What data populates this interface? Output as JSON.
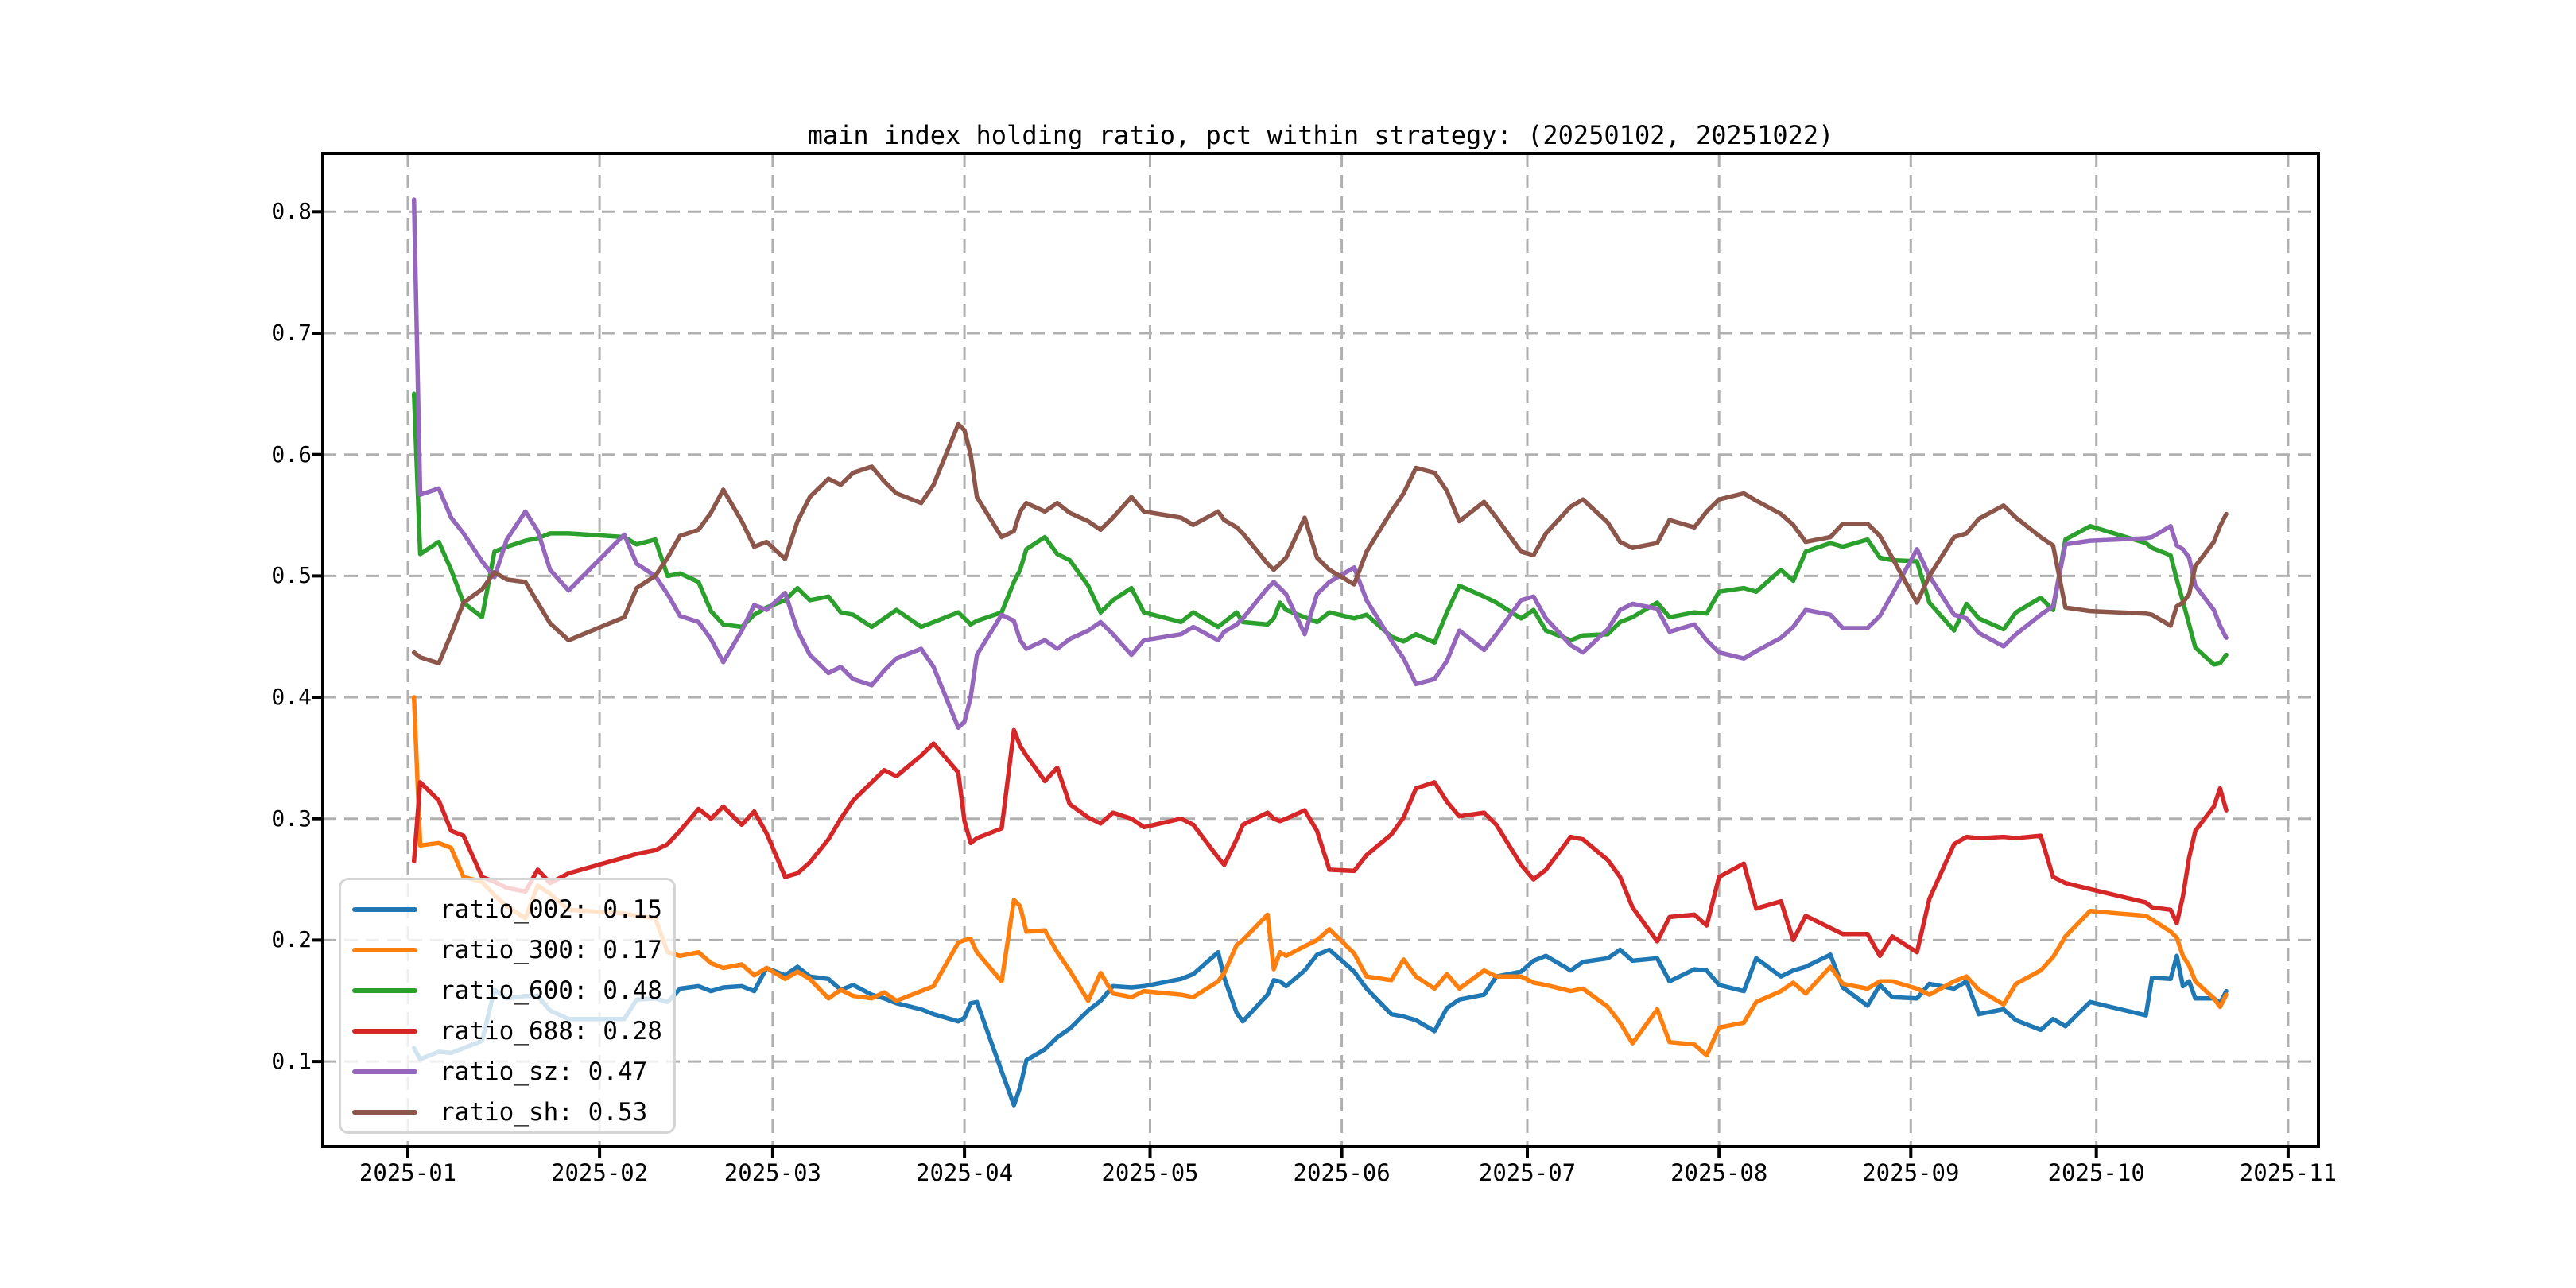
{
  "figure": {
    "background": "#ffffff"
  },
  "chart_data": {
    "type": "line",
    "title": "main index holding ratio, pct within strategy: (20250102, 20251022)",
    "grid": true,
    "grid_style": "dashed",
    "grid_color": "#b0b0b0",
    "spine_color": "#000000",
    "legend_position": "lower-left",
    "x_axis": {
      "tick_labels": [
        "2025-01",
        "2025-02",
        "2025-03",
        "2025-04",
        "2025-05",
        "2025-06",
        "2025-07",
        "2025-08",
        "2025-09",
        "2025-10",
        "2025-11"
      ],
      "tick_days": [
        0,
        31,
        59,
        90,
        120,
        151,
        181,
        212,
        243,
        273,
        304
      ],
      "range_days": [
        -13.75,
        308.9
      ]
    },
    "y_axis": {
      "tick_labels": [
        "0.1",
        "0.2",
        "0.3",
        "0.4",
        "0.5",
        "0.6",
        "0.7",
        "0.8"
      ],
      "tick_values": [
        0.1,
        0.2,
        0.3,
        0.4,
        0.5,
        0.6,
        0.7,
        0.8
      ],
      "range": [
        0.03,
        0.848
      ]
    },
    "dates": [
      "01-02",
      "01-03",
      "01-06",
      "01-08",
      "01-10",
      "01-13",
      "01-15",
      "01-17",
      "01-20",
      "01-22",
      "01-24",
      "01-27",
      "02-05",
      "02-07",
      "02-10",
      "02-12",
      "02-14",
      "02-17",
      "02-19",
      "02-21",
      "02-24",
      "02-26",
      "02-28",
      "03-03",
      "03-05",
      "03-07",
      "03-10",
      "03-12",
      "03-14",
      "03-17",
      "03-19",
      "03-21",
      "03-25",
      "03-27",
      "03-31",
      "04-01",
      "04-02",
      "04-03",
      "04-07",
      "04-09",
      "04-10",
      "04-11",
      "04-14",
      "04-16",
      "04-18",
      "04-21",
      "04-23",
      "04-25",
      "04-28",
      "04-30",
      "05-06",
      "05-08",
      "05-12",
      "05-13",
      "05-15",
      "05-16",
      "05-20",
      "05-21",
      "05-22",
      "05-23",
      "05-26",
      "05-28",
      "05-30",
      "06-03",
      "06-05",
      "06-09",
      "06-11",
      "06-13",
      "06-16",
      "06-18",
      "06-20",
      "06-24",
      "06-26",
      "06-30",
      "07-02",
      "07-04",
      "07-08",
      "07-10",
      "07-14",
      "07-16",
      "07-18",
      "07-22",
      "07-24",
      "07-28",
      "07-30",
      "08-01",
      "08-05",
      "08-07",
      "08-11",
      "08-13",
      "08-15",
      "08-19",
      "08-21",
      "08-25",
      "08-27",
      "08-29",
      "09-02",
      "09-04",
      "09-08",
      "09-10",
      "09-12",
      "09-16",
      "09-18",
      "09-22",
      "09-24",
      "09-26",
      "09-30",
      "10-09",
      "10-10",
      "10-13",
      "10-14",
      "10-15",
      "10-16",
      "10-17",
      "10-20",
      "10-21",
      "10-22"
    ],
    "x_days": [
      1,
      2,
      5,
      7,
      9,
      12,
      14,
      16,
      19,
      21,
      23,
      26,
      35,
      37,
      40,
      42,
      44,
      47,
      49,
      51,
      54,
      56,
      58,
      61,
      63,
      65,
      68,
      70,
      72,
      75,
      77,
      79,
      83,
      85,
      89,
      90,
      91,
      92,
      96,
      98,
      99,
      100,
      103,
      105,
      107,
      110,
      112,
      114,
      117,
      119,
      125,
      127,
      131,
      132,
      134,
      135,
      139,
      140,
      141,
      142,
      145,
      147,
      149,
      153,
      155,
      159,
      161,
      163,
      166,
      168,
      170,
      174,
      176,
      180,
      182,
      184,
      188,
      190,
      194,
      196,
      198,
      202,
      204,
      208,
      210,
      212,
      216,
      218,
      222,
      224,
      226,
      230,
      232,
      236,
      238,
      240,
      244,
      246,
      250,
      252,
      254,
      258,
      260,
      264,
      266,
      268,
      272,
      281,
      282,
      285,
      286,
      287,
      288,
      289,
      292,
      293,
      294
    ],
    "series": [
      {
        "name": "ratio_002",
        "legend_label": "ratio_002: 0.15",
        "legend_value": "0.15",
        "color": "#1f77b4",
        "values": [
          0.111,
          0.102,
          0.108,
          0.107,
          0.111,
          0.117,
          0.159,
          0.152,
          0.154,
          0.154,
          0.142,
          0.135,
          0.135,
          0.151,
          0.152,
          0.149,
          0.16,
          0.162,
          0.158,
          0.161,
          0.162,
          0.158,
          0.177,
          0.171,
          0.178,
          0.17,
          0.168,
          0.159,
          0.163,
          0.155,
          0.152,
          0.148,
          0.143,
          0.139,
          0.133,
          0.136,
          0.148,
          0.149,
          0.092,
          0.064,
          0.079,
          0.101,
          0.11,
          0.12,
          0.127,
          0.142,
          0.15,
          0.162,
          0.161,
          0.162,
          0.168,
          0.172,
          0.19,
          0.169,
          0.14,
          0.133,
          0.155,
          0.167,
          0.166,
          0.162,
          0.175,
          0.188,
          0.192,
          0.174,
          0.16,
          0.139,
          0.137,
          0.134,
          0.125,
          0.144,
          0.151,
          0.155,
          0.17,
          0.174,
          0.183,
          0.187,
          0.175,
          0.182,
          0.185,
          0.192,
          0.183,
          0.185,
          0.166,
          0.176,
          0.175,
          0.163,
          0.158,
          0.185,
          0.17,
          0.175,
          0.178,
          0.188,
          0.161,
          0.146,
          0.163,
          0.153,
          0.152,
          0.164,
          0.16,
          0.166,
          0.139,
          0.143,
          0.134,
          0.126,
          0.135,
          0.129,
          0.149,
          0.138,
          0.169,
          0.168,
          0.187,
          0.162,
          0.166,
          0.152,
          0.152,
          0.148,
          0.158
        ]
      },
      {
        "name": "ratio_300",
        "legend_label": "ratio_300: 0.17",
        "legend_value": "0.17",
        "color": "#ff7f0e",
        "values": [
          0.4,
          0.278,
          0.28,
          0.276,
          0.252,
          0.248,
          0.237,
          0.228,
          0.218,
          0.245,
          0.238,
          0.225,
          0.222,
          0.22,
          0.218,
          0.19,
          0.187,
          0.19,
          0.181,
          0.177,
          0.18,
          0.171,
          0.177,
          0.168,
          0.174,
          0.168,
          0.152,
          0.159,
          0.154,
          0.152,
          0.157,
          0.15,
          0.158,
          0.162,
          0.198,
          0.2,
          0.201,
          0.19,
          0.166,
          0.233,
          0.228,
          0.207,
          0.208,
          0.19,
          0.175,
          0.15,
          0.173,
          0.156,
          0.153,
          0.158,
          0.155,
          0.153,
          0.166,
          0.173,
          0.196,
          0.2,
          0.221,
          0.176,
          0.19,
          0.187,
          0.195,
          0.2,
          0.209,
          0.189,
          0.17,
          0.167,
          0.184,
          0.17,
          0.16,
          0.172,
          0.16,
          0.175,
          0.17,
          0.17,
          0.165,
          0.163,
          0.158,
          0.16,
          0.145,
          0.132,
          0.115,
          0.143,
          0.116,
          0.114,
          0.105,
          0.128,
          0.132,
          0.149,
          0.158,
          0.165,
          0.156,
          0.178,
          0.164,
          0.16,
          0.166,
          0.166,
          0.16,
          0.155,
          0.166,
          0.17,
          0.159,
          0.147,
          0.164,
          0.175,
          0.186,
          0.203,
          0.224,
          0.22,
          0.217,
          0.207,
          0.202,
          0.187,
          0.179,
          0.166,
          0.152,
          0.145,
          0.155
        ]
      },
      {
        "name": "ratio_600",
        "legend_label": "ratio_600: 0.48",
        "legend_value": "0.48",
        "color": "#2ca02c",
        "values": [
          0.65,
          0.518,
          0.528,
          0.505,
          0.478,
          0.466,
          0.52,
          0.524,
          0.529,
          0.531,
          0.535,
          0.535,
          0.532,
          0.526,
          0.53,
          0.5,
          0.502,
          0.495,
          0.471,
          0.46,
          0.458,
          0.468,
          0.474,
          0.48,
          0.49,
          0.48,
          0.483,
          0.47,
          0.468,
          0.458,
          0.465,
          0.472,
          0.458,
          0.462,
          0.47,
          0.465,
          0.46,
          0.463,
          0.47,
          0.495,
          0.505,
          0.522,
          0.532,
          0.518,
          0.513,
          0.492,
          0.47,
          0.48,
          0.49,
          0.47,
          0.462,
          0.47,
          0.458,
          0.462,
          0.47,
          0.462,
          0.46,
          0.465,
          0.478,
          0.472,
          0.466,
          0.462,
          0.47,
          0.465,
          0.468,
          0.45,
          0.446,
          0.452,
          0.445,
          0.47,
          0.492,
          0.483,
          0.478,
          0.465,
          0.472,
          0.455,
          0.447,
          0.451,
          0.452,
          0.462,
          0.466,
          0.478,
          0.466,
          0.47,
          0.469,
          0.487,
          0.49,
          0.487,
          0.505,
          0.496,
          0.52,
          0.527,
          0.524,
          0.53,
          0.515,
          0.513,
          0.512,
          0.478,
          0.455,
          0.477,
          0.465,
          0.456,
          0.47,
          0.482,
          0.472,
          0.53,
          0.541,
          0.527,
          0.523,
          0.517,
          0.497,
          0.479,
          0.46,
          0.441,
          0.427,
          0.428,
          0.435
        ]
      },
      {
        "name": "ratio_688",
        "legend_label": "ratio_688: 0.28",
        "legend_value": "0.28",
        "color": "#d62728",
        "values": [
          0.265,
          0.33,
          0.315,
          0.29,
          0.286,
          0.252,
          0.248,
          0.243,
          0.24,
          0.258,
          0.247,
          0.255,
          0.268,
          0.271,
          0.274,
          0.279,
          0.29,
          0.308,
          0.3,
          0.31,
          0.295,
          0.306,
          0.288,
          0.252,
          0.255,
          0.264,
          0.283,
          0.3,
          0.315,
          0.33,
          0.34,
          0.335,
          0.352,
          0.362,
          0.338,
          0.298,
          0.28,
          0.284,
          0.292,
          0.373,
          0.36,
          0.352,
          0.331,
          0.342,
          0.312,
          0.301,
          0.296,
          0.305,
          0.3,
          0.293,
          0.3,
          0.295,
          0.268,
          0.262,
          0.283,
          0.295,
          0.305,
          0.3,
          0.298,
          0.3,
          0.307,
          0.29,
          0.258,
          0.257,
          0.27,
          0.287,
          0.301,
          0.325,
          0.33,
          0.314,
          0.302,
          0.305,
          0.295,
          0.262,
          0.25,
          0.258,
          0.285,
          0.283,
          0.266,
          0.252,
          0.227,
          0.199,
          0.219,
          0.221,
          0.212,
          0.252,
          0.263,
          0.226,
          0.232,
          0.2,
          0.22,
          0.21,
          0.205,
          0.205,
          0.187,
          0.203,
          0.19,
          0.234,
          0.279,
          0.285,
          0.284,
          0.285,
          0.284,
          0.286,
          0.252,
          0.247,
          0.242,
          0.231,
          0.227,
          0.225,
          0.214,
          0.236,
          0.268,
          0.29,
          0.31,
          0.325,
          0.307
        ]
      },
      {
        "name": "ratio_sz",
        "legend_label": "ratio_sz: 0.47",
        "legend_value": "0.47",
        "color": "#9467bd",
        "values": [
          0.81,
          0.567,
          0.572,
          0.548,
          0.535,
          0.512,
          0.499,
          0.53,
          0.553,
          0.537,
          0.505,
          0.488,
          0.534,
          0.51,
          0.5,
          0.485,
          0.467,
          0.462,
          0.448,
          0.429,
          0.455,
          0.476,
          0.472,
          0.486,
          0.455,
          0.435,
          0.42,
          0.425,
          0.415,
          0.41,
          0.422,
          0.432,
          0.44,
          0.425,
          0.375,
          0.38,
          0.4,
          0.435,
          0.468,
          0.463,
          0.447,
          0.44,
          0.447,
          0.44,
          0.448,
          0.455,
          0.462,
          0.452,
          0.435,
          0.447,
          0.452,
          0.458,
          0.447,
          0.454,
          0.46,
          0.465,
          0.49,
          0.495,
          0.49,
          0.485,
          0.452,
          0.485,
          0.495,
          0.507,
          0.48,
          0.447,
          0.432,
          0.411,
          0.415,
          0.43,
          0.455,
          0.439,
          0.452,
          0.48,
          0.483,
          0.465,
          0.443,
          0.437,
          0.456,
          0.472,
          0.477,
          0.473,
          0.454,
          0.46,
          0.447,
          0.437,
          0.432,
          0.438,
          0.449,
          0.458,
          0.472,
          0.468,
          0.457,
          0.457,
          0.467,
          0.485,
          0.522,
          0.5,
          0.468,
          0.465,
          0.453,
          0.442,
          0.452,
          0.468,
          0.475,
          0.526,
          0.529,
          0.531,
          0.532,
          0.541,
          0.525,
          0.522,
          0.515,
          0.492,
          0.472,
          0.459,
          0.449
        ]
      },
      {
        "name": "ratio_sh",
        "legend_label": "ratio_sh: 0.53",
        "legend_value": "0.53",
        "color": "#8c564b",
        "values": [
          0.437,
          0.433,
          0.428,
          0.452,
          0.478,
          0.489,
          0.503,
          0.497,
          0.495,
          0.478,
          0.461,
          0.447,
          0.466,
          0.49,
          0.5,
          0.515,
          0.533,
          0.538,
          0.552,
          0.571,
          0.545,
          0.524,
          0.528,
          0.514,
          0.545,
          0.565,
          0.58,
          0.575,
          0.585,
          0.59,
          0.578,
          0.568,
          0.56,
          0.575,
          0.625,
          0.62,
          0.6,
          0.565,
          0.532,
          0.537,
          0.553,
          0.56,
          0.553,
          0.56,
          0.552,
          0.545,
          0.538,
          0.548,
          0.565,
          0.553,
          0.548,
          0.542,
          0.553,
          0.546,
          0.54,
          0.535,
          0.51,
          0.505,
          0.51,
          0.515,
          0.548,
          0.515,
          0.505,
          0.493,
          0.52,
          0.553,
          0.568,
          0.589,
          0.585,
          0.57,
          0.545,
          0.561,
          0.548,
          0.52,
          0.517,
          0.535,
          0.557,
          0.563,
          0.544,
          0.528,
          0.523,
          0.527,
          0.546,
          0.54,
          0.553,
          0.563,
          0.568,
          0.562,
          0.551,
          0.542,
          0.528,
          0.532,
          0.543,
          0.543,
          0.533,
          0.515,
          0.478,
          0.5,
          0.532,
          0.535,
          0.547,
          0.558,
          0.548,
          0.532,
          0.525,
          0.474,
          0.471,
          0.469,
          0.468,
          0.459,
          0.475,
          0.478,
          0.485,
          0.508,
          0.528,
          0.541,
          0.551
        ]
      }
    ]
  }
}
